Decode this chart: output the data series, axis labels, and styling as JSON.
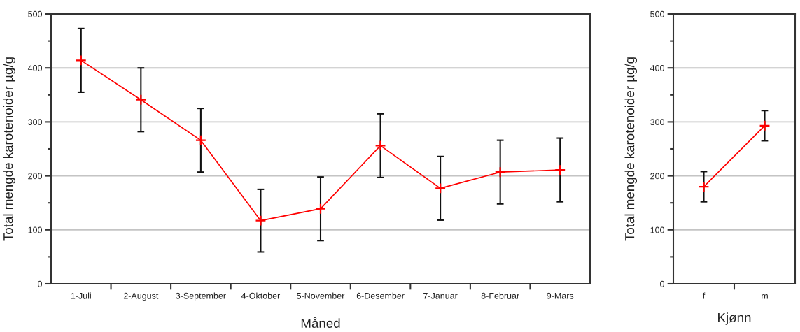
{
  "chart_data": [
    {
      "type": "line",
      "categories": [
        "1-Juli",
        "2-August",
        "3-September",
        "4-Oktober",
        "5-November",
        "6-Desember",
        "7-Januar",
        "8-Februar",
        "9-Mars"
      ],
      "values": [
        414,
        341,
        266,
        117,
        139,
        256,
        177,
        207,
        211
      ],
      "errors": [
        59,
        59,
        59,
        58,
        59,
        59,
        59,
        59,
        59
      ],
      "color": "#ff0000",
      "marker": "cross",
      "line_style": "solid",
      "xlabel": "Måned",
      "ylabel": "Total mengde karotenoider µg/g",
      "ylim": [
        0,
        500
      ],
      "yticks": [
        0,
        {
          "value": 50,
          "label": null
        },
        100,
        {
          "value": 150,
          "label": null
        },
        200,
        {
          "value": 250,
          "label": null
        },
        300,
        {
          "value": 350,
          "label": null
        },
        400,
        {
          "value": 450,
          "label": null
        },
        500
      ],
      "grid": "y"
    },
    {
      "type": "line",
      "categories": [
        "f",
        "m"
      ],
      "values": [
        180,
        293
      ],
      "errors": [
        28,
        28
      ],
      "color": "#ff0000",
      "marker": "cross",
      "line_style": "solid",
      "xlabel": "Kjønn",
      "ylabel": "Total mengde karotenoider µg/g",
      "ylim": [
        0,
        500
      ],
      "yticks": [
        0,
        {
          "value": 50,
          "label": null
        },
        100,
        {
          "value": 150,
          "label": null
        },
        200,
        {
          "value": 250,
          "label": null
        },
        300,
        {
          "value": 350,
          "label": null
        },
        400,
        {
          "value": 450,
          "label": null
        },
        500
      ],
      "grid": "y"
    }
  ]
}
